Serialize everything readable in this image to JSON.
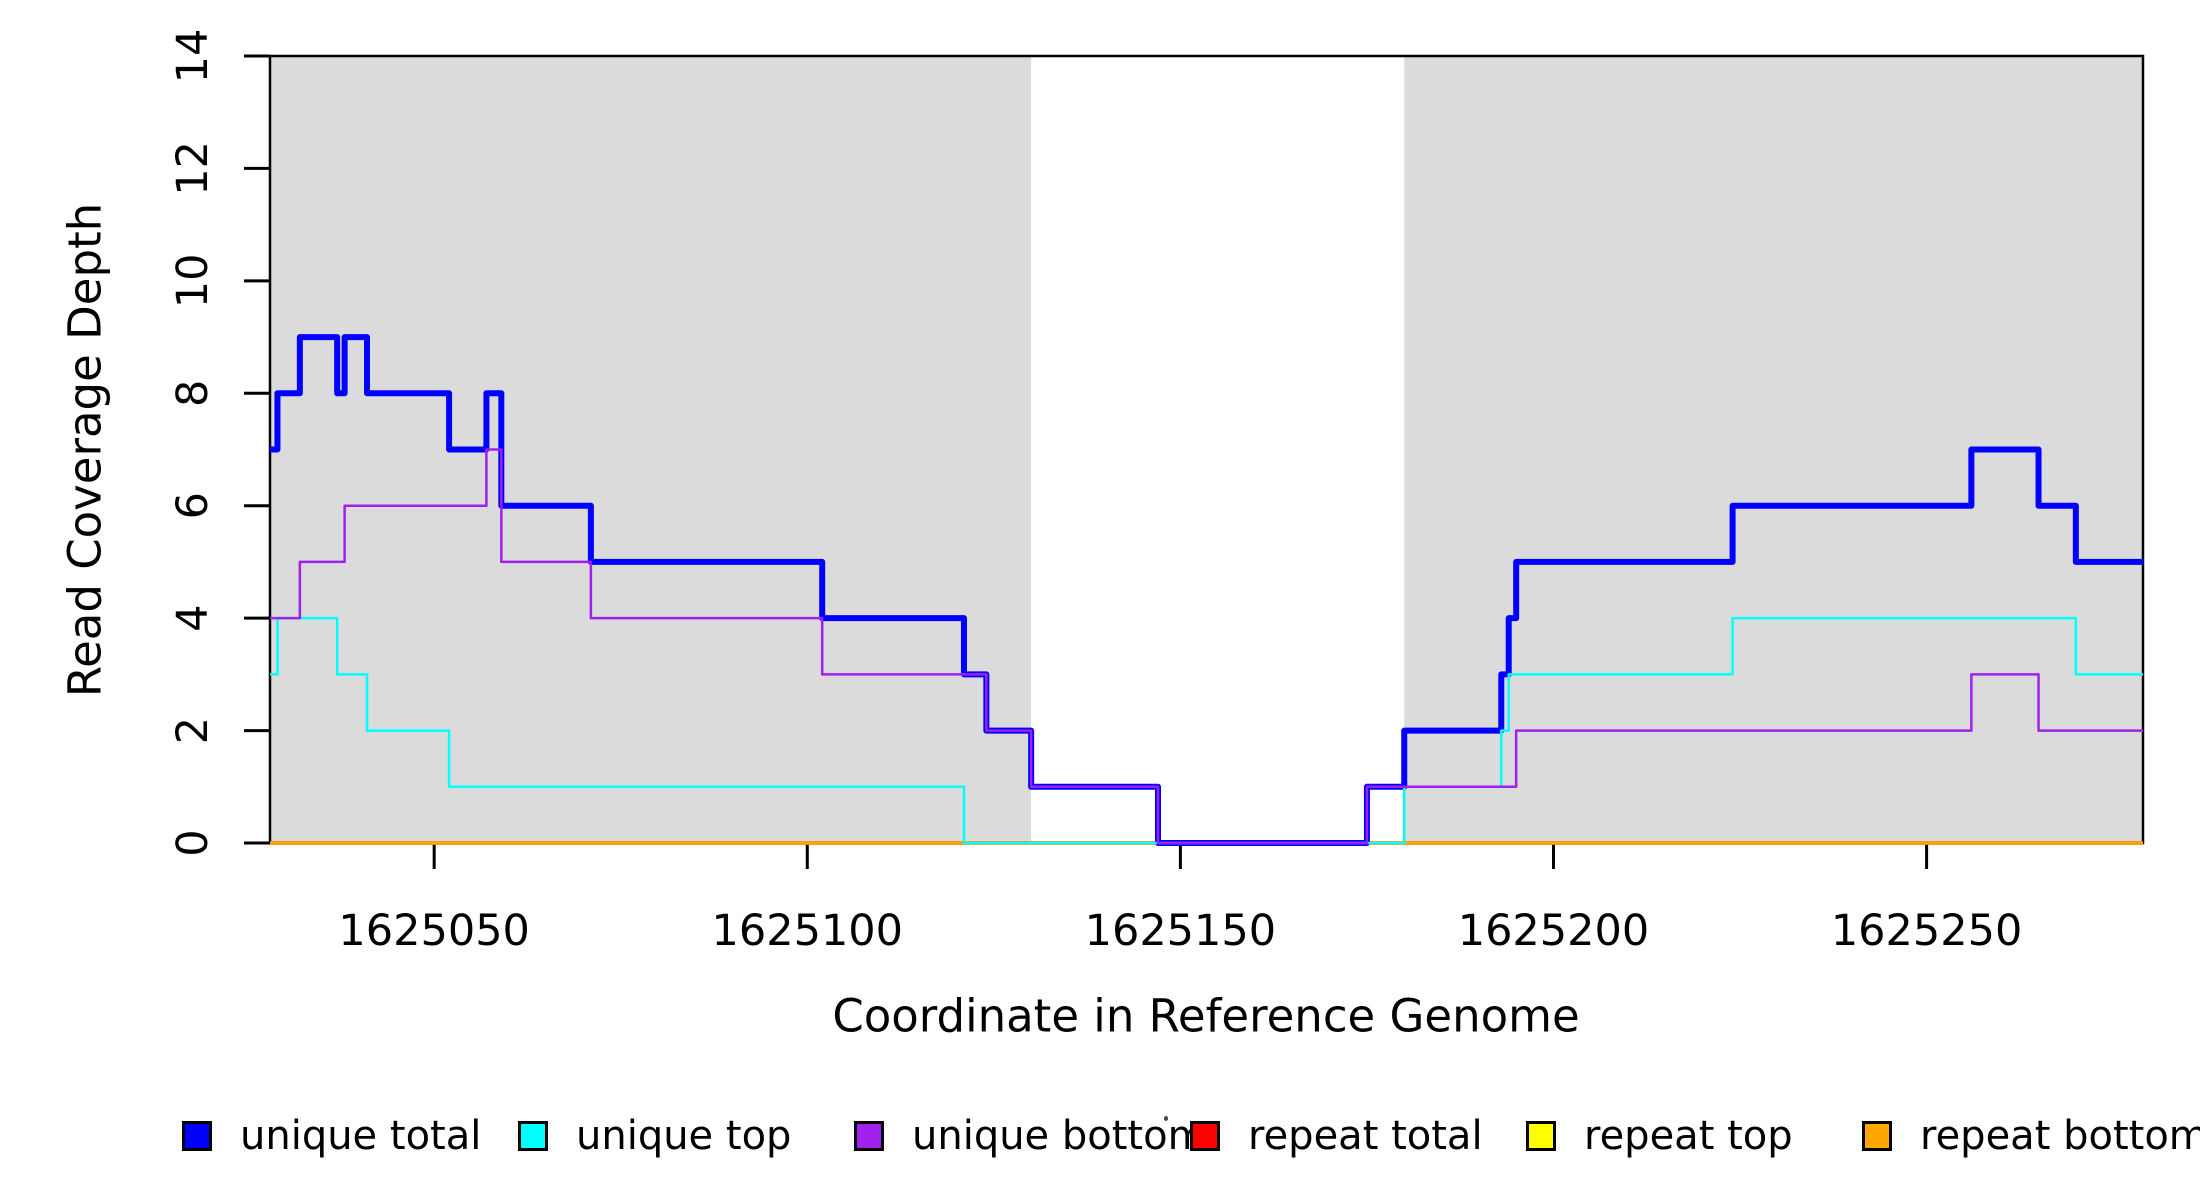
{
  "chart_data": {
    "type": "line",
    "subtype": "step-coverage",
    "title": "",
    "xlabel": "Coordinate in Reference Genome",
    "ylabel": "Read Coverage Depth",
    "xlim": [
      1625028,
      1625279
    ],
    "ylim": [
      0,
      14
    ],
    "x_ticks": [
      1625050,
      1625100,
      1625150,
      1625200,
      1625250
    ],
    "y_ticks": [
      0,
      2,
      4,
      6,
      8,
      10,
      12,
      14
    ],
    "grid": false,
    "background": "#FFFFFF",
    "shaded_regions": [
      {
        "x0": 1625028,
        "x1": 1625130,
        "color": "#DBDBDB"
      },
      {
        "x0": 1625180,
        "x1": 1625279,
        "color": "#DBDBDB"
      }
    ],
    "series": [
      {
        "name": "unique total",
        "color": "#0000FF",
        "line_width": 6,
        "start_value": 7,
        "steps": [
          [
            1625029,
            8
          ],
          [
            1625032,
            9
          ],
          [
            1625037,
            8
          ],
          [
            1625038,
            9
          ],
          [
            1625041,
            8
          ],
          [
            1625052,
            7
          ],
          [
            1625057,
            8
          ],
          [
            1625059,
            6
          ],
          [
            1625071,
            5
          ],
          [
            1625102,
            4
          ],
          [
            1625121,
            3
          ],
          [
            1625124,
            2
          ],
          [
            1625130,
            1
          ],
          [
            1625147,
            0
          ],
          [
            1625175,
            1
          ],
          [
            1625180,
            2
          ],
          [
            1625193,
            3
          ],
          [
            1625194,
            4
          ],
          [
            1625195,
            5
          ],
          [
            1625224,
            6
          ],
          [
            1625256,
            7
          ],
          [
            1625265,
            6
          ],
          [
            1625270,
            5
          ]
        ]
      },
      {
        "name": "unique top",
        "color": "#00FFFF",
        "line_width": 2.5,
        "start_value": 3,
        "steps": [
          [
            1625029,
            4
          ],
          [
            1625037,
            3
          ],
          [
            1625041,
            2
          ],
          [
            1625052,
            1
          ],
          [
            1625121,
            0
          ],
          [
            1625180,
            1
          ],
          [
            1625193,
            2
          ],
          [
            1625194,
            3
          ],
          [
            1625224,
            4
          ],
          [
            1625270,
            3
          ]
        ]
      },
      {
        "name": "unique bottom",
        "color": "#A020F0",
        "line_width": 2.5,
        "start_value": 4,
        "steps": [
          [
            1625032,
            5
          ],
          [
            1625038,
            6
          ],
          [
            1625057,
            7
          ],
          [
            1625059,
            5
          ],
          [
            1625071,
            4
          ],
          [
            1625102,
            3
          ],
          [
            1625124,
            2
          ],
          [
            1625130,
            1
          ],
          [
            1625147,
            0
          ],
          [
            1625175,
            1
          ],
          [
            1625195,
            2
          ],
          [
            1625256,
            3
          ],
          [
            1625265,
            2
          ]
        ]
      },
      {
        "name": "repeat total",
        "color": "#FF0000",
        "line_width": 3.5,
        "start_value": 0,
        "steps": []
      },
      {
        "name": "repeat top",
        "color": "#FFFF00",
        "line_width": 2.5,
        "start_value": 0,
        "steps": []
      },
      {
        "name": "repeat bottom",
        "color": "#FFA500",
        "line_width": 3.5,
        "start_value": 0,
        "steps": []
      }
    ],
    "draw_order": [
      3,
      4,
      5,
      0,
      1,
      2
    ],
    "legend": {
      "position": "bottom",
      "entries": [
        {
          "label": "unique total",
          "color": "#0000FF"
        },
        {
          "label": "unique top",
          "color": "#00FFFF"
        },
        {
          "label": "unique bottom",
          "color": "#A020F0"
        },
        {
          "label": "repeat total",
          "color": "#FF0000"
        },
        {
          "label": "repeat top",
          "color": "#FFFF00"
        },
        {
          "label": "repeat bottom",
          "color": "#FFA500"
        }
      ]
    }
  }
}
